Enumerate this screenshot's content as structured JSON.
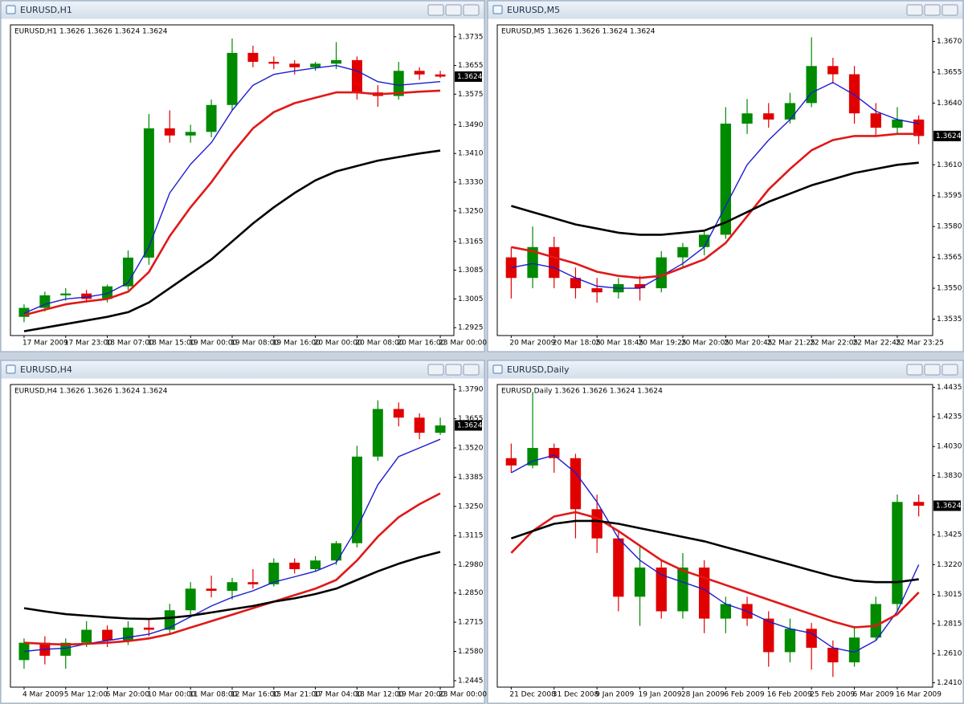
{
  "chart_data": [
    {
      "type": "candlestick",
      "title": "EURUSD,H1",
      "subtitle": "EURUSD,H1  1.3626 1.3626 1.3624 1.3624",
      "last_price": 1.3624,
      "up_color": "#008a00",
      "down_color": "#e00000",
      "categories": [
        "17 Mar 2009",
        null,
        "17 Mar 23:00",
        null,
        "18 Mar 07:00",
        null,
        "18 Mar 15:00",
        null,
        "19 Mar 00:00",
        null,
        "19 Mar 08:00",
        null,
        "19 Mar 16:00",
        null,
        "20 Mar 00:00",
        null,
        "20 Mar 08:00",
        null,
        "20 Mar 16:00",
        null,
        "23 Mar 00:00"
      ],
      "open": [
        1.2955,
        1.298,
        1.3015,
        1.302,
        1.3005,
        1.304,
        1.312,
        1.348,
        1.346,
        1.347,
        1.3545,
        1.369,
        1.3665,
        1.366,
        1.365,
        1.366,
        1.367,
        1.358,
        1.357,
        1.364,
        1.363
      ],
      "high": [
        1.299,
        1.3025,
        1.3035,
        1.303,
        1.3045,
        1.314,
        1.352,
        1.353,
        1.349,
        1.356,
        1.373,
        1.371,
        1.368,
        1.367,
        1.3665,
        1.372,
        1.368,
        1.36,
        1.3665,
        1.365,
        1.364
      ],
      "low": [
        1.294,
        1.297,
        1.3,
        1.2995,
        1.2995,
        1.303,
        1.31,
        1.344,
        1.344,
        1.3455,
        1.353,
        1.365,
        1.3645,
        1.363,
        1.364,
        1.3645,
        1.356,
        1.354,
        1.356,
        1.3615,
        1.362
      ],
      "close": [
        1.298,
        1.3015,
        1.302,
        1.3005,
        1.304,
        1.312,
        1.348,
        1.346,
        1.347,
        1.3545,
        1.369,
        1.3665,
        1.366,
        1.365,
        1.366,
        1.367,
        1.358,
        1.357,
        1.364,
        1.363,
        1.3624
      ],
      "lines": [
        {
          "color": "#1c1cd0",
          "values": [
            1.2965,
            1.299,
            1.3005,
            1.301,
            1.302,
            1.305,
            1.315,
            1.33,
            1.338,
            1.344,
            1.353,
            1.36,
            1.363,
            1.364,
            1.3648,
            1.3655,
            1.364,
            1.361,
            1.36,
            1.3605,
            1.361
          ]
        },
        {
          "color": "#e01818",
          "values": [
            1.296,
            1.2975,
            1.299,
            1.2998,
            1.3005,
            1.3025,
            1.308,
            1.318,
            1.326,
            1.333,
            1.341,
            1.348,
            1.3525,
            1.355,
            1.3565,
            1.358,
            1.358,
            1.3575,
            1.3578,
            1.3582,
            1.3585
          ]
        },
        {
          "color": "#000000",
          "values": [
            1.2915,
            1.2925,
            1.2935,
            1.2945,
            1.2955,
            1.2968,
            1.2995,
            1.3035,
            1.3075,
            1.3115,
            1.3165,
            1.3215,
            1.326,
            1.33,
            1.3335,
            1.336,
            1.3375,
            1.339,
            1.34,
            1.341,
            1.3418
          ]
        }
      ],
      "ylim": [
        1.2903,
        1.3768
      ],
      "yticks": [
        1.3735,
        1.3655,
        1.3575,
        {
          "value": 1.349,
          "label": "1.3490"
        },
        {
          "value": 1.341,
          "label": "1.3410"
        },
        {
          "value": 1.333,
          "label": "1.3330"
        },
        {
          "value": 1.325,
          "label": "1.3250"
        },
        1.3165,
        1.3085,
        1.3005,
        1.2925
      ]
    },
    {
      "type": "candlestick",
      "title": "EURUSD,M5",
      "subtitle": "EURUSD,M5  1.3626 1.3626 1.3624 1.3624",
      "last_price": 1.3624,
      "up_color": "#008a00",
      "down_color": "#e00000",
      "categories": [
        "20 Mar 2009",
        null,
        "20 Mar 18:05",
        null,
        "20 Mar 18:45",
        null,
        "20 Mar 19:25",
        null,
        "20 Mar 20:05",
        null,
        "20 Mar 20:45",
        null,
        "22 Mar 21:25",
        null,
        "22 Mar 22:05",
        null,
        "22 Mar 22:45",
        null,
        "22 Mar 23:25",
        null
      ],
      "open": [
        1.3565,
        1.3555,
        1.357,
        1.3555,
        1.355,
        1.3548,
        1.3552,
        1.355,
        1.3565,
        1.357,
        1.3576,
        1.363,
        1.3635,
        1.3632,
        1.364,
        1.3658,
        1.3654,
        1.3635,
        1.3628,
        1.3632
      ],
      "high": [
        1.357,
        1.358,
        1.3575,
        1.356,
        1.3555,
        1.3555,
        1.3556,
        1.3568,
        1.3572,
        1.3578,
        1.3638,
        1.3642,
        1.364,
        1.3645,
        1.3672,
        1.3662,
        1.3658,
        1.364,
        1.3638,
        1.3634
      ],
      "low": [
        1.3545,
        1.355,
        1.355,
        1.3545,
        1.3543,
        1.3545,
        1.3544,
        1.3548,
        1.356,
        1.3566,
        1.3574,
        1.3625,
        1.3628,
        1.363,
        1.3638,
        1.365,
        1.363,
        1.3624,
        1.3625,
        1.362
      ],
      "close": [
        1.3555,
        1.357,
        1.3555,
        1.355,
        1.3548,
        1.3552,
        1.355,
        1.3565,
        1.357,
        1.3576,
        1.363,
        1.3635,
        1.3632,
        1.364,
        1.3658,
        1.3654,
        1.3635,
        1.3628,
        1.3632,
        1.3624
      ],
      "lines": [
        {
          "color": "#1c1cd0",
          "values": [
            1.356,
            1.3562,
            1.356,
            1.3555,
            1.3551,
            1.355,
            1.355,
            1.3556,
            1.3562,
            1.357,
            1.359,
            1.361,
            1.3622,
            1.3632,
            1.3645,
            1.365,
            1.3644,
            1.3636,
            1.3632,
            1.363
          ]
        },
        {
          "color": "#e01818",
          "values": [
            1.357,
            1.3568,
            1.3565,
            1.3562,
            1.3558,
            1.3556,
            1.3555,
            1.3556,
            1.356,
            1.3564,
            1.3572,
            1.3585,
            1.3598,
            1.3608,
            1.3617,
            1.3622,
            1.3624,
            1.3624,
            1.3625,
            1.3625
          ]
        },
        {
          "color": "#000000",
          "values": [
            1.359,
            1.3587,
            1.3584,
            1.3581,
            1.3579,
            1.3577,
            1.3576,
            1.3576,
            1.3577,
            1.3578,
            1.3582,
            1.3587,
            1.3592,
            1.3596,
            1.36,
            1.3603,
            1.3606,
            1.3608,
            1.361,
            1.3611
          ]
        }
      ],
      "ylim": [
        1.3527,
        1.3678
      ],
      "yticks": [
        {
          "value": 1.367,
          "label": "1.3670"
        },
        1.3655,
        {
          "value": 1.364,
          "label": "1.3640"
        },
        {
          "value": 1.361,
          "label": "1.3610"
        },
        1.3595,
        {
          "value": 1.358,
          "label": "1.3580"
        },
        1.3565,
        {
          "value": 1.355,
          "label": "1.3550"
        },
        1.3535
      ]
    },
    {
      "type": "candlestick",
      "title": "EURUSD,H4",
      "subtitle": "EURUSD,H4  1.3626 1.3626 1.3624 1.3624",
      "last_price": 1.3624,
      "up_color": "#008a00",
      "down_color": "#e00000",
      "categories": [
        "4 Mar 2009",
        null,
        "5 Mar 12:00",
        null,
        "6 Mar 20:00",
        null,
        "10 Mar 00:00",
        null,
        "11 Mar 08:00",
        null,
        "12 Mar 16:00",
        null,
        "15 Mar 21:00",
        null,
        "17 Mar 04:00",
        null,
        "18 Mar 12:00",
        null,
        "19 Mar 20:00",
        null,
        "23 Mar 00:00"
      ],
      "open": [
        1.254,
        1.262,
        1.256,
        1.262,
        1.268,
        1.263,
        1.269,
        1.268,
        1.277,
        1.287,
        1.286,
        1.29,
        1.289,
        1.299,
        1.296,
        1.3,
        1.308,
        1.348,
        1.37,
        1.366,
        1.359
      ],
      "high": [
        1.264,
        1.265,
        1.264,
        1.272,
        1.27,
        1.272,
        1.273,
        1.28,
        1.29,
        1.293,
        1.292,
        1.296,
        1.301,
        1.301,
        1.302,
        1.309,
        1.353,
        1.374,
        1.373,
        1.368,
        1.366
      ],
      "low": [
        1.25,
        1.252,
        1.25,
        1.26,
        1.26,
        1.261,
        1.265,
        1.266,
        1.275,
        1.283,
        1.282,
        1.287,
        1.288,
        1.294,
        1.295,
        1.298,
        1.306,
        1.346,
        1.362,
        1.356,
        1.358
      ],
      "close": [
        1.262,
        1.256,
        1.262,
        1.268,
        1.263,
        1.269,
        1.268,
        1.277,
        1.287,
        1.286,
        1.29,
        1.289,
        1.299,
        1.296,
        1.3,
        1.308,
        1.348,
        1.37,
        1.366,
        1.359,
        1.3624
      ],
      "lines": [
        {
          "color": "#1c1cd0",
          "values": [
            1.258,
            1.259,
            1.2595,
            1.2615,
            1.263,
            1.2645,
            1.266,
            1.269,
            1.274,
            1.279,
            1.283,
            1.286,
            1.29,
            1.2925,
            1.295,
            1.299,
            1.315,
            1.335,
            1.348,
            1.352,
            1.356
          ]
        },
        {
          "color": "#e01818",
          "values": [
            1.262,
            1.2615,
            1.2612,
            1.2615,
            1.262,
            1.2628,
            1.264,
            1.266,
            1.269,
            1.272,
            1.275,
            1.278,
            1.281,
            1.284,
            1.287,
            1.291,
            1.3,
            1.311,
            1.32,
            1.326,
            1.331
          ]
        },
        {
          "color": "#000000",
          "values": [
            1.278,
            1.2765,
            1.2752,
            1.2745,
            1.2738,
            1.2732,
            1.273,
            1.2735,
            1.2745,
            1.276,
            1.2775,
            1.279,
            1.281,
            1.2825,
            1.2845,
            1.287,
            1.291,
            1.295,
            1.2985,
            1.3015,
            1.304
          ]
        }
      ],
      "ylim": [
        1.2415,
        1.3813
      ],
      "yticks": [
        {
          "value": 1.379,
          "label": "1.3790"
        },
        1.3655,
        {
          "value": 1.352,
          "label": "1.3520"
        },
        1.3385,
        {
          "value": 1.325,
          "label": "1.3250"
        },
        1.3115,
        {
          "value": 1.298,
          "label": "1.2980"
        },
        {
          "value": 1.285,
          "label": "1.2850"
        },
        1.2715,
        {
          "value": 1.258,
          "label": "1.2580"
        },
        1.2445
      ]
    },
    {
      "type": "candlestick",
      "title": "EURUSD,Daily",
      "subtitle": "EURUSD,Daily  1.3626 1.3626 1.3624 1.3624",
      "last_price": 1.3624,
      "up_color": "#008a00",
      "down_color": "#e00000",
      "categories": [
        "21 Dec 2008",
        null,
        "31 Dec 2008",
        null,
        "9 Jan 2009",
        null,
        "19 Jan 2009",
        null,
        "28 Jan 2009",
        null,
        "6 Feb 2009",
        null,
        "16 Feb 2009",
        null,
        "25 Feb 2009",
        null,
        "6 Mar 2009",
        null,
        "16 Mar 2009",
        null
      ],
      "open": [
        1.395,
        1.39,
        1.402,
        1.395,
        1.36,
        1.34,
        1.3,
        1.32,
        1.29,
        1.32,
        1.285,
        1.295,
        1.285,
        1.262,
        1.278,
        1.265,
        1.255,
        1.272,
        1.295,
        1.365
      ],
      "high": [
        1.405,
        1.44,
        1.405,
        1.398,
        1.37,
        1.345,
        1.335,
        1.325,
        1.33,
        1.325,
        1.3,
        1.3,
        1.29,
        1.285,
        1.282,
        1.27,
        1.28,
        1.3,
        1.37,
        1.37
      ],
      "low": [
        1.385,
        1.388,
        1.385,
        1.34,
        1.33,
        1.29,
        1.28,
        1.285,
        1.285,
        1.275,
        1.275,
        1.28,
        1.252,
        1.255,
        1.25,
        1.245,
        1.252,
        1.27,
        1.29,
        1.355
      ],
      "close": [
        1.39,
        1.402,
        1.395,
        1.36,
        1.34,
        1.3,
        1.32,
        1.29,
        1.32,
        1.285,
        1.295,
        1.285,
        1.262,
        1.278,
        1.265,
        1.255,
        1.272,
        1.295,
        1.365,
        1.3624
      ],
      "lines": [
        {
          "color": "#1c1cd0",
          "values": [
            1.385,
            1.393,
            1.397,
            1.385,
            1.365,
            1.34,
            1.325,
            1.315,
            1.31,
            1.305,
            1.295,
            1.29,
            1.283,
            1.278,
            1.275,
            1.265,
            1.262,
            1.27,
            1.29,
            1.322
          ]
        },
        {
          "color": "#e01818",
          "values": [
            1.33,
            1.345,
            1.355,
            1.358,
            1.354,
            1.345,
            1.335,
            1.325,
            1.318,
            1.313,
            1.308,
            1.303,
            1.298,
            1.293,
            1.288,
            1.283,
            1.279,
            1.28,
            1.288,
            1.303
          ]
        },
        {
          "color": "#000000",
          "values": [
            1.34,
            1.345,
            1.35,
            1.352,
            1.352,
            1.35,
            1.347,
            1.344,
            1.341,
            1.338,
            1.334,
            1.33,
            1.326,
            1.322,
            1.318,
            1.314,
            1.311,
            1.31,
            1.31,
            1.312
          ]
        }
      ],
      "ylim": [
        1.238,
        1.4455
      ],
      "yticks": [
        1.4435,
        1.4235,
        {
          "value": 1.403,
          "label": "1.4030"
        },
        {
          "value": 1.383,
          "label": "1.3830"
        },
        1.3425,
        {
          "value": 1.322,
          "label": "1.3220"
        },
        1.3015,
        1.2815,
        {
          "value": 1.261,
          "label": "1.2610"
        },
        {
          "value": 1.241,
          "label": "1.2410"
        }
      ]
    }
  ]
}
